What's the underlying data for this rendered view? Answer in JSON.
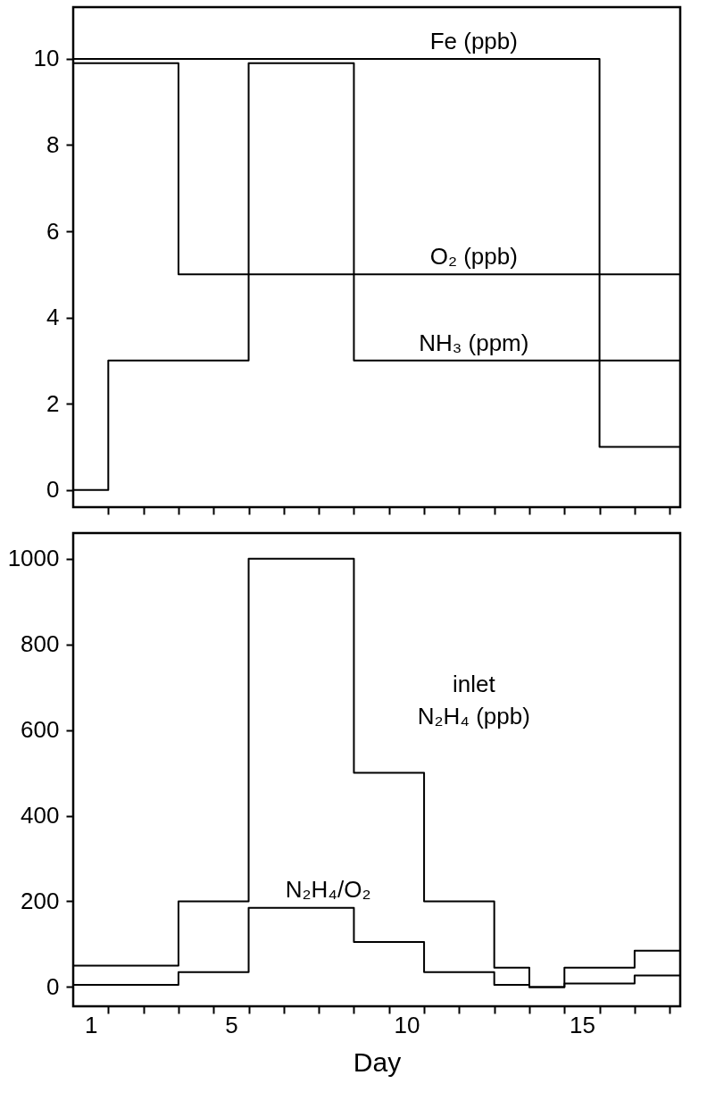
{
  "chart_data": [
    {
      "type": "step",
      "xlim": [
        0.5,
        17.8
      ],
      "xticks": [
        {
          "value": 1.5,
          "label": null
        },
        {
          "value": 2.5,
          "label": null
        },
        {
          "value": 3.5,
          "label": null
        },
        {
          "value": 4.5,
          "label": null
        },
        {
          "value": 5.5,
          "label": null
        },
        {
          "value": 6.5,
          "label": null
        },
        {
          "value": 7.5,
          "label": null
        },
        {
          "value": 8.5,
          "label": null
        },
        {
          "value": 9.5,
          "label": null
        },
        {
          "value": 10.5,
          "label": null
        },
        {
          "value": 11.5,
          "label": null
        },
        {
          "value": 12.5,
          "label": null
        },
        {
          "value": 13.5,
          "label": null
        },
        {
          "value": 14.5,
          "label": null
        },
        {
          "value": 15.5,
          "label": null
        },
        {
          "value": 16.5,
          "label": null
        },
        {
          "value": 17.5,
          "label": null
        }
      ],
      "ylim": [
        -0.4,
        11.2
      ],
      "yticks": [
        0,
        2,
        4,
        6,
        8,
        10
      ],
      "tick_labels": "y",
      "series": [
        {
          "name": "Fe (ppb)",
          "color": "#000000",
          "x": [
            0.5,
            15.5,
            17.8
          ],
          "values": [
            10,
            1,
            1
          ]
        },
        {
          "name": "O₂ (ppb)",
          "color": "#000000",
          "x": [
            0.5,
            3.5,
            17.8
          ],
          "values": [
            9.9,
            5,
            5
          ]
        },
        {
          "name": "NH₃ (ppm)",
          "color": "#000000",
          "x": [
            0.5,
            1.5,
            5.5,
            8.5,
            17.8
          ],
          "values": [
            0,
            3,
            9.9,
            3,
            3
          ]
        }
      ]
    },
    {
      "type": "step",
      "xlim": [
        0.5,
        17.8
      ],
      "xticks": [
        {
          "value": 1,
          "label": "1"
        },
        {
          "value": 5,
          "label": "5"
        },
        {
          "value": 10,
          "label": "10"
        },
        {
          "value": 15,
          "label": "15"
        },
        {
          "value": 1.5,
          "label": null
        },
        {
          "value": 2.5,
          "label": null
        },
        {
          "value": 3.5,
          "label": null
        },
        {
          "value": 4.5,
          "label": null
        },
        {
          "value": 5.5,
          "label": null
        },
        {
          "value": 6.5,
          "label": null
        },
        {
          "value": 7.5,
          "label": null
        },
        {
          "value": 8.5,
          "label": null
        },
        {
          "value": 9.5,
          "label": null
        },
        {
          "value": 10.5,
          "label": null
        },
        {
          "value": 11.5,
          "label": null
        },
        {
          "value": 12.5,
          "label": null
        },
        {
          "value": 13.5,
          "label": null
        },
        {
          "value": 14.5,
          "label": null
        },
        {
          "value": 15.5,
          "label": null
        },
        {
          "value": 16.5,
          "label": null
        },
        {
          "value": 17.5,
          "label": null
        }
      ],
      "ylim": [
        -45,
        1060
      ],
      "yticks": [
        0,
        200,
        400,
        600,
        800,
        1000
      ],
      "xlabel": "Day",
      "series": [
        {
          "name": "inlet\nN₂H₄ (ppb)",
          "color": "#000000",
          "x": [
            0.5,
            3.5,
            5.5,
            8.5,
            10.5,
            12.5,
            13.5,
            14.5,
            16.5,
            17.8
          ],
          "values": [
            50,
            200,
            1000,
            500,
            200,
            45,
            0,
            45,
            85,
            85
          ]
        },
        {
          "name": "N₂H₄/O₂",
          "color": "#000000",
          "x": [
            0.5,
            3.5,
            5.5,
            8.5,
            10.5,
            12.5,
            13.5,
            14.5,
            16.5,
            17.8
          ],
          "values": [
            5,
            35,
            185,
            105,
            35,
            5,
            0,
            8,
            27,
            27
          ]
        }
      ]
    }
  ]
}
